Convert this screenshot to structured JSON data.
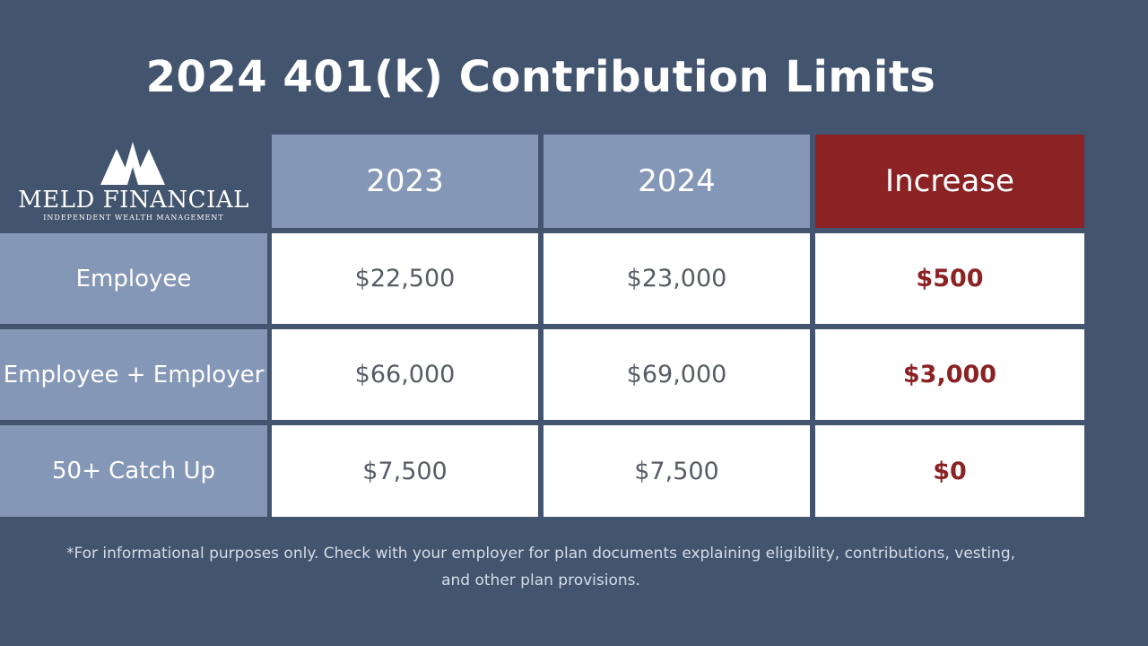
{
  "title": "2024 401(k) Contribution Limits",
  "logo": {
    "name": "MELD FINANCIAL",
    "tagline": "INDEPENDENT WEALTH MANAGEMENT",
    "icon": "meld-mountain-logo-icon"
  },
  "table": {
    "headers": [
      "2023",
      "2024",
      "Increase"
    ],
    "rows": [
      {
        "label": "Employee",
        "y2023": "$22,500",
        "y2024": "$23,000",
        "increase": "$500"
      },
      {
        "label": "Employee + Employer",
        "y2023": "$66,000",
        "y2024": "$69,000",
        "increase": "$3,000"
      },
      {
        "label": "50+ Catch Up",
        "y2023": "$7,500",
        "y2024": "$7,500",
        "increase": "$0"
      }
    ]
  },
  "footnote": {
    "line1": "*For informational purposes only. Check with your employer for plan documents explaining eligibility, contributions, vesting,",
    "line2": "and other plan provisions."
  },
  "colors": {
    "background": "#43546e",
    "header": "#8497b7",
    "accent": "#8b2224",
    "cell": "#ffffff"
  }
}
